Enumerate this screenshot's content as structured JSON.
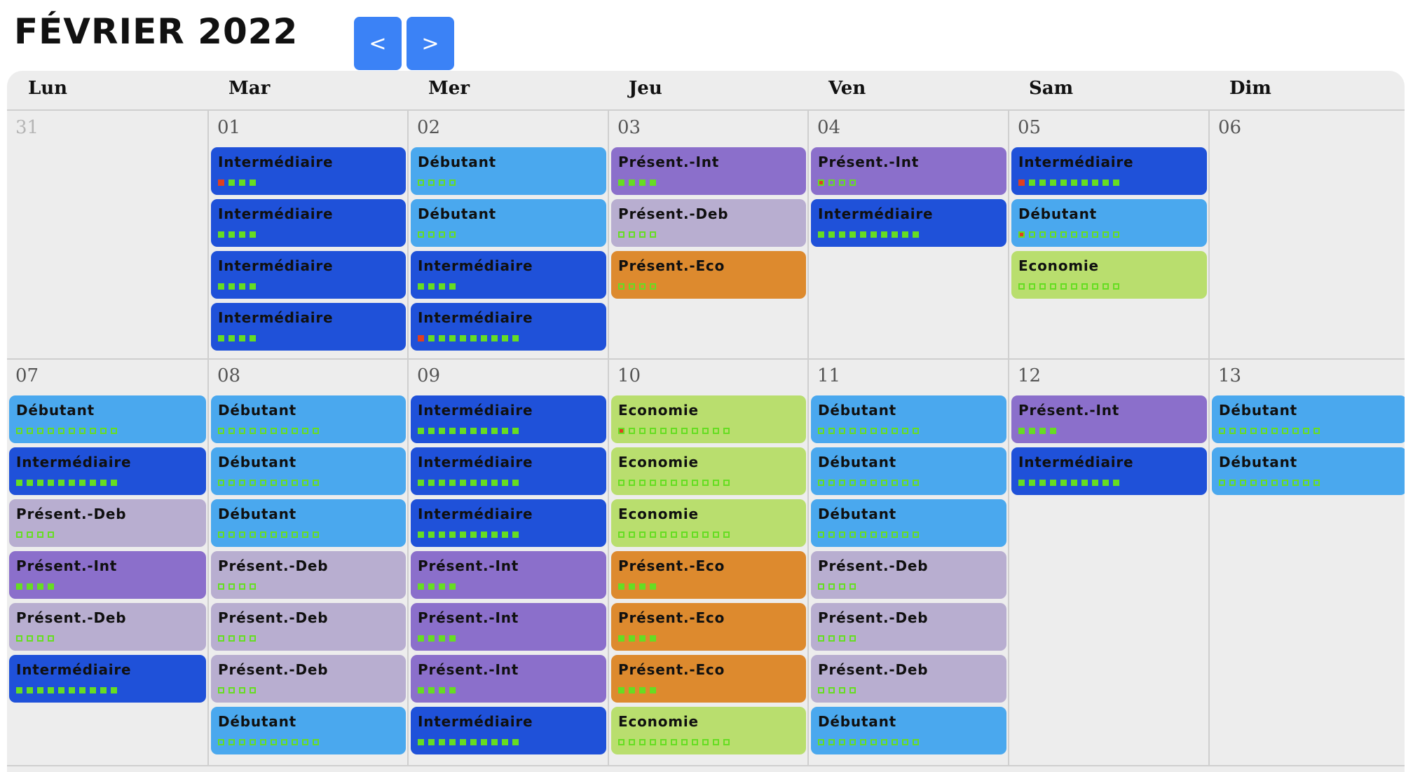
{
  "header": {
    "title": "FÉVRIER 2022",
    "prev_label": "<",
    "next_label": ">"
  },
  "colors": {
    "Intermédiaire": "#1f51d9",
    "Débutant": "#4aa8ee",
    "Présent.-Int": "#8b6fcb",
    "Présent.-Deb": "#b8aed0",
    "Présent.-Eco": "#dd8a2e",
    "Economie": "#b9de6e",
    "dot_green": "#66dd22",
    "dot_red": "#e04020",
    "nav_button": "#3b82f6"
  },
  "weekdays": [
    "Lun",
    "Mar",
    "Mer",
    "Jeu",
    "Ven",
    "Sam",
    "Dim"
  ],
  "weeks": [
    {
      "days": [
        {
          "num": "31",
          "other": true,
          "events": []
        },
        {
          "num": "01",
          "events": [
            {
              "label": "Intermédiaire",
              "dots": [
                2,
                1,
                1,
                1
              ]
            },
            {
              "label": "Intermédiaire",
              "dots": [
                1,
                1,
                1,
                1
              ]
            },
            {
              "label": "Intermédiaire",
              "dots": [
                1,
                1,
                1,
                1
              ]
            },
            {
              "label": "Intermédiaire",
              "dots": [
                1,
                1,
                1,
                1
              ]
            }
          ]
        },
        {
          "num": "02",
          "events": [
            {
              "label": "Débutant",
              "dots": [
                0,
                0,
                0,
                0
              ]
            },
            {
              "label": "Débutant",
              "dots": [
                0,
                0,
                0,
                0
              ]
            },
            {
              "label": "Intermédiaire",
              "dots": [
                1,
                1,
                1,
                1
              ]
            },
            {
              "label": "Intermédiaire",
              "dots": [
                2,
                1,
                1,
                1,
                1,
                1,
                1,
                1,
                1,
                1
              ]
            }
          ]
        },
        {
          "num": "03",
          "events": [
            {
              "label": "Présent.-Int",
              "dots": [
                1,
                1,
                1,
                1
              ]
            },
            {
              "label": "Présent.-Deb",
              "dots": [
                0,
                0,
                0,
                0
              ]
            },
            {
              "label": "Présent.-Eco",
              "dots": [
                0,
                0,
                0,
                0
              ]
            }
          ]
        },
        {
          "num": "04",
          "events": [
            {
              "label": "Présent.-Int",
              "dots": [
                3,
                0,
                0,
                0
              ]
            },
            {
              "label": "Intermédiaire",
              "dots": [
                1,
                1,
                1,
                1,
                1,
                1,
                1,
                1,
                1,
                1
              ]
            }
          ]
        },
        {
          "num": "05",
          "events": [
            {
              "label": "Intermédiaire",
              "dots": [
                2,
                1,
                1,
                1,
                1,
                1,
                1,
                1,
                1,
                1
              ]
            },
            {
              "label": "Débutant",
              "dots": [
                3,
                0,
                0,
                0,
                0,
                0,
                0,
                0,
                0,
                0
              ]
            },
            {
              "label": "Economie",
              "dots": [
                0,
                0,
                0,
                0,
                0,
                0,
                0,
                0,
                0,
                0
              ]
            }
          ]
        },
        {
          "num": "06",
          "events": []
        }
      ]
    },
    {
      "days": [
        {
          "num": "07",
          "events": [
            {
              "label": "Débutant",
              "dots": [
                0,
                0,
                0,
                0,
                0,
                0,
                0,
                0,
                0,
                0
              ]
            },
            {
              "label": "Intermédiaire",
              "dots": [
                1,
                1,
                1,
                1,
                1,
                1,
                1,
                1,
                1,
                1
              ]
            },
            {
              "label": "Présent.-Deb",
              "dots": [
                0,
                0,
                0,
                0
              ]
            },
            {
              "label": "Présent.-Int",
              "dots": [
                1,
                1,
                1,
                1
              ]
            },
            {
              "label": "Présent.-Deb",
              "dots": [
                0,
                0,
                0,
                0
              ]
            },
            {
              "label": "Intermédiaire",
              "dots": [
                1,
                1,
                1,
                1,
                1,
                1,
                1,
                1,
                1,
                1
              ]
            }
          ]
        },
        {
          "num": "08",
          "events": [
            {
              "label": "Débutant",
              "dots": [
                0,
                0,
                0,
                0,
                0,
                0,
                0,
                0,
                0,
                0
              ]
            },
            {
              "label": "Débutant",
              "dots": [
                0,
                0,
                0,
                0,
                0,
                0,
                0,
                0,
                0,
                0
              ]
            },
            {
              "label": "Débutant",
              "dots": [
                0,
                0,
                0,
                0,
                0,
                0,
                0,
                0,
                0,
                0
              ]
            },
            {
              "label": "Présent.-Deb",
              "dots": [
                0,
                0,
                0,
                0
              ]
            },
            {
              "label": "Présent.-Deb",
              "dots": [
                0,
                0,
                0,
                0
              ]
            },
            {
              "label": "Présent.-Deb",
              "dots": [
                0,
                0,
                0,
                0
              ]
            },
            {
              "label": "Débutant",
              "dots": [
                0,
                0,
                0,
                0,
                0,
                0,
                0,
                0,
                0,
                0
              ]
            }
          ]
        },
        {
          "num": "09",
          "events": [
            {
              "label": "Intermédiaire",
              "dots": [
                1,
                1,
                1,
                1,
                1,
                1,
                1,
                1,
                1,
                1
              ]
            },
            {
              "label": "Intermédiaire",
              "dots": [
                1,
                1,
                1,
                1,
                1,
                1,
                1,
                1,
                1,
                1
              ]
            },
            {
              "label": "Intermédiaire",
              "dots": [
                1,
                1,
                1,
                1,
                1,
                1,
                1,
                1,
                1,
                1
              ]
            },
            {
              "label": "Présent.-Int",
              "dots": [
                1,
                1,
                1,
                1
              ]
            },
            {
              "label": "Présent.-Int",
              "dots": [
                1,
                1,
                1,
                1
              ]
            },
            {
              "label": "Présent.-Int",
              "dots": [
                1,
                1,
                1,
                1
              ]
            },
            {
              "label": "Intermédiaire",
              "dots": [
                1,
                1,
                1,
                1,
                1,
                1,
                1,
                1,
                1,
                1
              ]
            }
          ]
        },
        {
          "num": "10",
          "events": [
            {
              "label": "Economie",
              "dots": [
                3,
                0,
                0,
                0,
                0,
                0,
                0,
                0,
                0,
                0,
                0
              ]
            },
            {
              "label": "Economie",
              "dots": [
                0,
                0,
                0,
                0,
                0,
                0,
                0,
                0,
                0,
                0,
                0
              ]
            },
            {
              "label": "Economie",
              "dots": [
                0,
                0,
                0,
                0,
                0,
                0,
                0,
                0,
                0,
                0,
                0
              ]
            },
            {
              "label": "Présent.-Eco",
              "dots": [
                1,
                1,
                1,
                1
              ]
            },
            {
              "label": "Présent.-Eco",
              "dots": [
                1,
                1,
                1,
                1
              ]
            },
            {
              "label": "Présent.-Eco",
              "dots": [
                1,
                1,
                1,
                1
              ]
            },
            {
              "label": "Economie",
              "dots": [
                0,
                0,
                0,
                0,
                0,
                0,
                0,
                0,
                0,
                0,
                0
              ]
            }
          ]
        },
        {
          "num": "11",
          "events": [
            {
              "label": "Débutant",
              "dots": [
                0,
                0,
                0,
                0,
                0,
                0,
                0,
                0,
                0,
                0
              ]
            },
            {
              "label": "Débutant",
              "dots": [
                0,
                0,
                0,
                0,
                0,
                0,
                0,
                0,
                0,
                0
              ]
            },
            {
              "label": "Débutant",
              "dots": [
                0,
                0,
                0,
                0,
                0,
                0,
                0,
                0,
                0,
                0
              ]
            },
            {
              "label": "Présent.-Deb",
              "dots": [
                0,
                0,
                0,
                0
              ]
            },
            {
              "label": "Présent.-Deb",
              "dots": [
                0,
                0,
                0,
                0
              ]
            },
            {
              "label": "Présent.-Deb",
              "dots": [
                0,
                0,
                0,
                0
              ]
            },
            {
              "label": "Débutant",
              "dots": [
                0,
                0,
                0,
                0,
                0,
                0,
                0,
                0,
                0,
                0
              ]
            }
          ]
        },
        {
          "num": "12",
          "events": [
            {
              "label": "Présent.-Int",
              "dots": [
                1,
                1,
                1,
                1
              ]
            },
            {
              "label": "Intermédiaire",
              "dots": [
                1,
                1,
                1,
                1,
                1,
                1,
                1,
                1,
                1,
                1
              ]
            }
          ]
        },
        {
          "num": "13",
          "events": [
            {
              "label": "Débutant",
              "dots": [
                0,
                0,
                0,
                0,
                0,
                0,
                0,
                0,
                0,
                0
              ]
            },
            {
              "label": "Débutant",
              "dots": [
                0,
                0,
                0,
                0,
                0,
                0,
                0,
                0,
                0,
                0
              ]
            }
          ]
        }
      ]
    }
  ]
}
